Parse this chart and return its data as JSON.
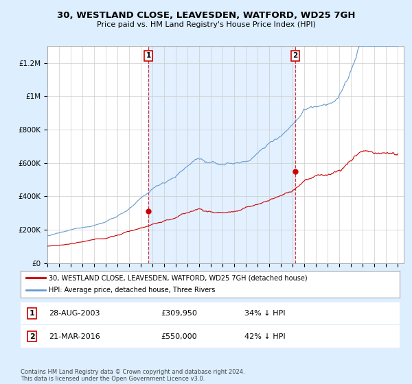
{
  "title": "30, WESTLAND CLOSE, LEAVESDEN, WATFORD, WD25 7GH",
  "subtitle": "Price paid vs. HM Land Registry's House Price Index (HPI)",
  "ylim": [
    0,
    1300000
  ],
  "xlim_start": 1995.0,
  "xlim_end": 2025.5,
  "yticks": [
    0,
    200000,
    400000,
    600000,
    800000,
    1000000,
    1200000
  ],
  "ytick_labels": [
    "£0",
    "£200K",
    "£400K",
    "£600K",
    "£800K",
    "£1M",
    "£1.2M"
  ],
  "sale1_x": 2003.65,
  "sale1_y": 309950,
  "sale2_x": 2016.22,
  "sale2_y": 550000,
  "legend_line1": "30, WESTLAND CLOSE, LEAVESDEN, WATFORD, WD25 7GH (detached house)",
  "legend_line2": "HPI: Average price, detached house, Three Rivers",
  "footer": "Contains HM Land Registry data © Crown copyright and database right 2024.\nThis data is licensed under the Open Government Licence v3.0.",
  "red_color": "#cc0000",
  "blue_color": "#6699cc",
  "fill_color": "#ddeeff",
  "bg_color": "#ddeeff",
  "plot_bg": "#ffffff",
  "grid_color": "#cccccc"
}
